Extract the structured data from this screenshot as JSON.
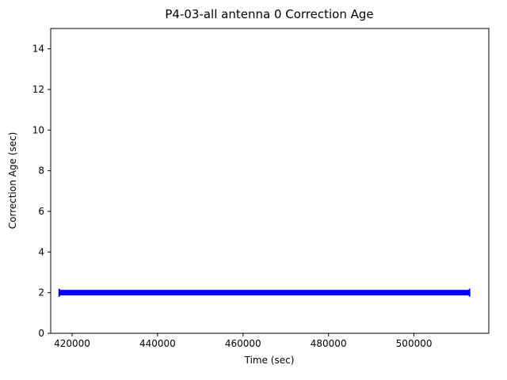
{
  "figure": {
    "background_color": "#ffffff",
    "frame_color": "#000000"
  },
  "chart_data": {
    "type": "line",
    "title": "P4-03-all antenna 0 Correction Age",
    "xlabel": "Time (sec)",
    "ylabel": "Correction Age (sec)",
    "xlim": [
      415000,
      517500
    ],
    "ylim": [
      0,
      15
    ],
    "x_ticks": [
      420000,
      440000,
      460000,
      480000,
      500000
    ],
    "y_ticks": [
      0,
      2,
      4,
      6,
      8,
      10,
      12,
      14
    ],
    "grid": false,
    "legend": null,
    "series": [
      {
        "name": "antenna-0-correction-age",
        "color": "#0000ff",
        "style": "thick-horizontal-band",
        "constant_value": 2,
        "x_start": 417000,
        "x_end": 513000,
        "band_thickness_px": 7
      }
    ]
  }
}
